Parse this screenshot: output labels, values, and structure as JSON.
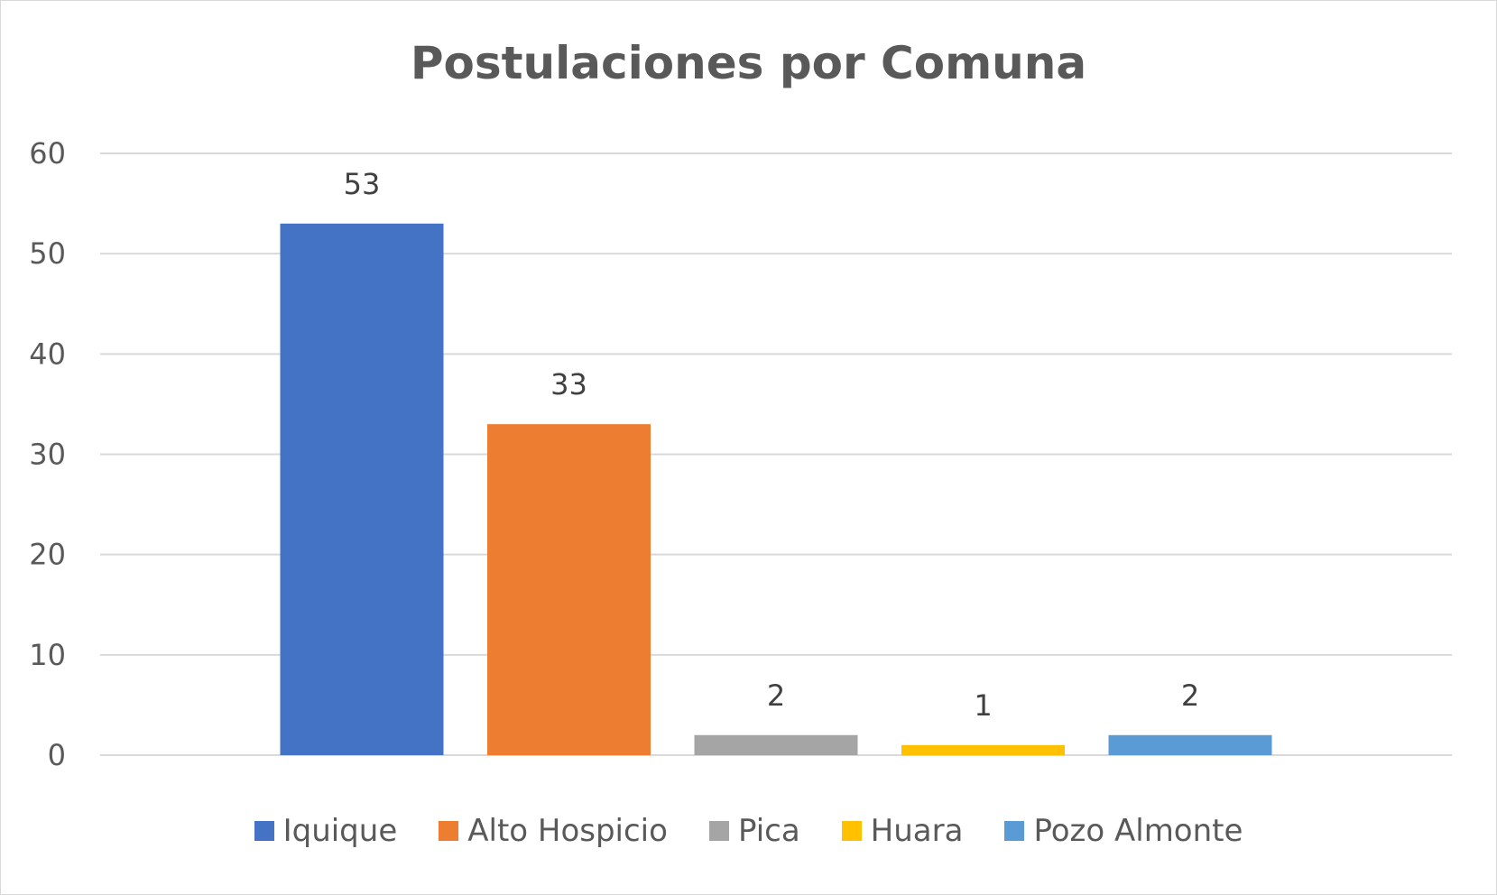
{
  "chart_data": {
    "type": "bar",
    "title": "Postulaciones por Comuna",
    "categories": [
      "Iquique",
      "Alto Hospicio",
      "Pica",
      "Huara",
      "Pozo Almonte"
    ],
    "values": [
      53,
      33,
      2,
      1,
      2
    ],
    "colors": [
      "#4472c4",
      "#ed7d31",
      "#a5a5a5",
      "#ffc000",
      "#5b9bd5"
    ],
    "ylim": [
      0,
      60
    ],
    "yticks": [
      0,
      10,
      20,
      30,
      40,
      50,
      60
    ],
    "xlabel": "",
    "ylabel": "",
    "grid": true,
    "legend": "bottom",
    "data_labels": true
  }
}
